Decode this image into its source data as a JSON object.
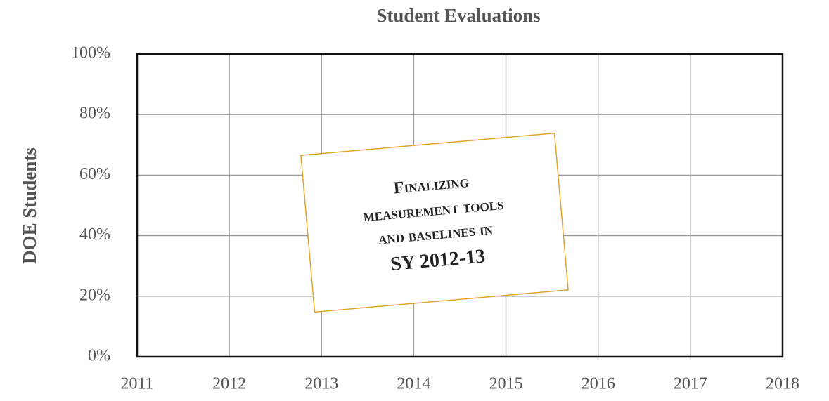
{
  "chart_data": {
    "type": "line",
    "title": "Student Evaluations",
    "y_label": "DOE Students",
    "xlim": [
      2011,
      2018
    ],
    "xticks": [
      2011,
      2012,
      2013,
      2014,
      2015,
      2016,
      2017,
      2018
    ],
    "ylim": [
      0,
      100
    ],
    "yticks": [
      {
        "value": 0,
        "label": "0%"
      },
      {
        "value": 20,
        "label": "20%"
      },
      {
        "value": 40,
        "label": "40%"
      },
      {
        "value": 60,
        "label": "60%"
      },
      {
        "value": 80,
        "label": "80%"
      },
      {
        "value": 100,
        "label": "100%"
      }
    ],
    "grid": true,
    "series": [],
    "annotation": [
      "Finalizing",
      "measurement tools",
      "and baselines in",
      "SY 2012-13"
    ]
  }
}
